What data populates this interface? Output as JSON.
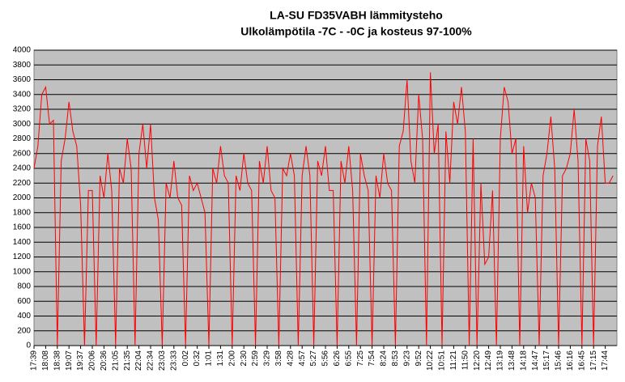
{
  "chart_data": {
    "type": "line",
    "title": "LA-SU FD35VABH lämmitysteho",
    "subtitle": "Ulkolämpötila  -7C - -0C ja kosteus 97-100%",
    "categories": [
      "17:39",
      null,
      null,
      "18:08",
      null,
      null,
      "18:38",
      null,
      null,
      "19:07",
      null,
      null,
      "19:37",
      null,
      null,
      "20:06",
      null,
      null,
      "20:36",
      null,
      null,
      "21:05",
      null,
      null,
      "21:35",
      null,
      null,
      "22:04",
      null,
      null,
      "22:34",
      null,
      null,
      "23:03",
      null,
      null,
      "23:33",
      null,
      null,
      "0:02",
      null,
      null,
      "0:32",
      null,
      null,
      "1:01",
      null,
      null,
      "1:31",
      null,
      null,
      "2:00",
      null,
      null,
      "2:30",
      null,
      null,
      "2:59",
      null,
      null,
      "3:29",
      null,
      null,
      "3:58",
      null,
      null,
      "4:28",
      null,
      null,
      "4:57",
      null,
      null,
      "5:27",
      null,
      null,
      "5:56",
      null,
      null,
      "6:26",
      null,
      null,
      "6:55",
      null,
      null,
      "7:25",
      null,
      null,
      "7:54",
      null,
      null,
      "8:24",
      null,
      null,
      "8:53",
      null,
      null,
      "9:23",
      null,
      null,
      "9:52",
      null,
      null,
      "10:22",
      null,
      null,
      "10:51",
      null,
      null,
      "11:21",
      null,
      null,
      "11:50",
      null,
      null,
      "12:20",
      null,
      null,
      "12:49",
      null,
      null,
      "13:19",
      null,
      null,
      "13:48",
      null,
      null,
      "14:18",
      null,
      null,
      "14:47",
      null,
      null,
      "15:17",
      null,
      null,
      "15:46",
      null,
      null,
      "16:16",
      null,
      null,
      "16:45",
      null,
      null,
      "17:15",
      null,
      null,
      "17:44",
      null,
      null
    ],
    "series": [
      {
        "color": "#ff0000",
        "values": [
          2400,
          2700,
          3400,
          3500,
          3000,
          3050,
          0,
          2500,
          2800,
          3300,
          2900,
          2700,
          1900,
          0,
          2100,
          2100,
          0,
          2300,
          2000,
          2600,
          2100,
          0,
          2400,
          2200,
          2800,
          2400,
          0,
          2600,
          3000,
          2400,
          3000,
          2000,
          1700,
          0,
          2200,
          2000,
          2500,
          2000,
          1900,
          0,
          2300,
          2100,
          2200,
          2000,
          1800,
          0,
          2400,
          2200,
          2700,
          2300,
          2200,
          0,
          2300,
          2100,
          2600,
          2200,
          2100,
          0,
          2500,
          2200,
          2700,
          2100,
          2000,
          0,
          2400,
          2300,
          2600,
          2300,
          0,
          2300,
          2700,
          2300,
          0,
          2500,
          2300,
          2700,
          2100,
          2100,
          0,
          2500,
          2200,
          2700,
          2100,
          0,
          2600,
          2300,
          2100,
          0,
          2300,
          2000,
          2600,
          2200,
          2100,
          0,
          2700,
          2900,
          3600,
          2500,
          2200,
          3400,
          2800,
          0,
          3700,
          2600,
          3000,
          0,
          2900,
          2200,
          3300,
          3000,
          3500,
          2900,
          0,
          2800,
          0,
          2200,
          1100,
          1200,
          2100,
          0,
          2800,
          3500,
          3300,
          2600,
          2800,
          0,
          2700,
          1800,
          2200,
          2000,
          0,
          2300,
          2600,
          3100,
          2400,
          0,
          2300,
          2400,
          2600,
          3200,
          2500,
          0,
          2800,
          2500,
          0,
          2700,
          3100,
          2200,
          2200,
          2300
        ]
      }
    ],
    "ylim": [
      0,
      4000
    ],
    "yticks": [
      0,
      200,
      400,
      600,
      800,
      1000,
      1200,
      1400,
      1600,
      1800,
      2000,
      2200,
      2400,
      2600,
      2800,
      3000,
      3200,
      3400,
      3600,
      3800,
      4000
    ],
    "grid": true
  }
}
